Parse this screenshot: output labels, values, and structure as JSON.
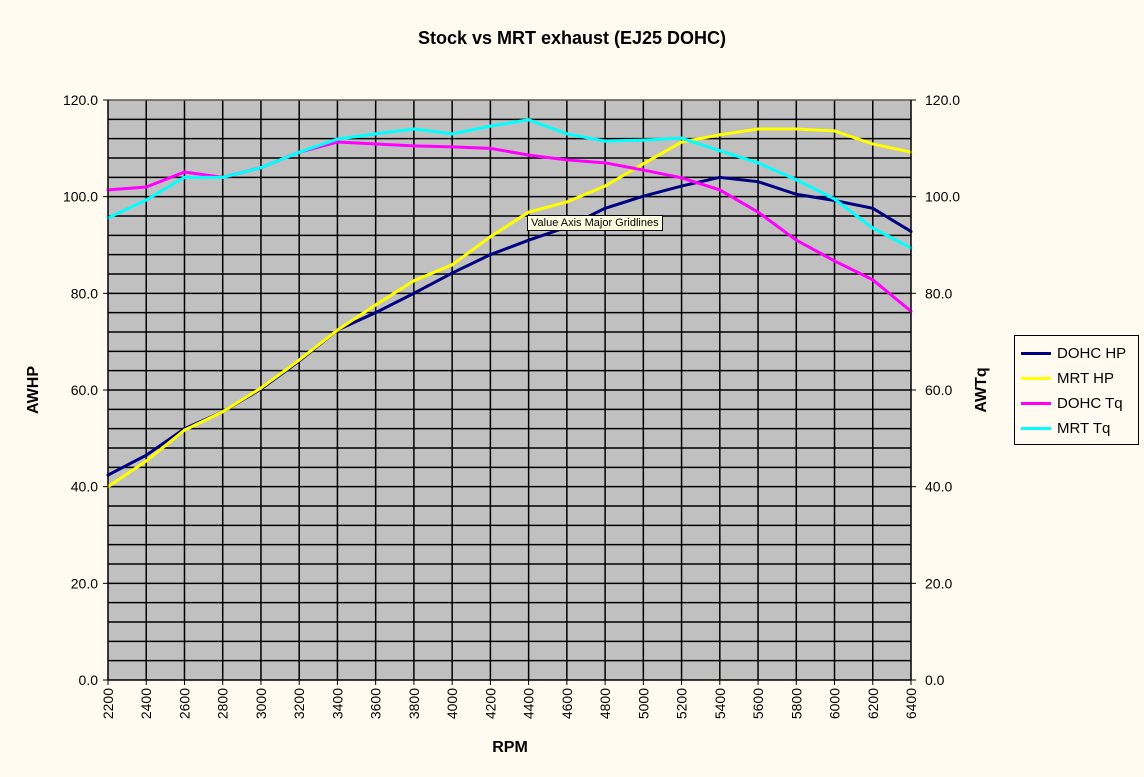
{
  "chart_data": {
    "type": "line",
    "title": "Stock vs MRT exhaust (EJ25 DOHC)",
    "xlabel": "RPM",
    "ylabel": "AWHP",
    "y2label": "AWTq",
    "ylim": [
      0,
      120
    ],
    "y2lim": [
      0,
      120
    ],
    "yticks": [
      "0.0",
      "20.0",
      "40.0",
      "60.0",
      "80.0",
      "100.0",
      "120.0"
    ],
    "grid": true,
    "legend_position": "right",
    "x": [
      2200,
      2400,
      2600,
      2800,
      3000,
      3200,
      3400,
      3600,
      3800,
      4000,
      4200,
      4400,
      4600,
      4800,
      5000,
      5200,
      5400,
      5600,
      5800,
      6000,
      6200,
      6400
    ],
    "series": [
      {
        "name": "DOHC HP",
        "color": "#000080",
        "values": [
          42.4,
          46.5,
          52.0,
          55.5,
          60.2,
          66.0,
          72.4,
          76.0,
          80.0,
          84.2,
          88.0,
          91.0,
          93.7,
          97.6,
          100.1,
          102.2,
          104.0,
          103.1,
          100.5,
          99.2,
          97.6,
          92.8
        ]
      },
      {
        "name": "MRT HP",
        "color": "#ffff00",
        "values": [
          40.0,
          45.3,
          51.7,
          55.5,
          60.4,
          66.2,
          72.4,
          77.6,
          82.6,
          85.9,
          91.7,
          96.8,
          98.9,
          102.2,
          106.8,
          111.3,
          112.8,
          114.0,
          114.0,
          113.6,
          110.9,
          109.2
        ]
      },
      {
        "name": "DOHC Tq",
        "color": "#ff00ff",
        "values": [
          101.4,
          102.0,
          105.1,
          104.0,
          106.0,
          109.2,
          111.3,
          110.9,
          110.5,
          110.3,
          110.0,
          108.6,
          107.6,
          107.0,
          105.5,
          103.9,
          101.4,
          96.8,
          91.0,
          86.7,
          82.8,
          76.3
        ]
      },
      {
        "name": "MRT Tq",
        "color": "#00ffff",
        "values": [
          95.6,
          99.3,
          104.0,
          104.0,
          106.0,
          109.2,
          111.9,
          113.0,
          114.0,
          113.0,
          114.6,
          115.9,
          113.0,
          111.5,
          111.7,
          112.1,
          109.5,
          107.0,
          103.5,
          99.5,
          93.5,
          89.4
        ]
      }
    ]
  },
  "tooltip": "Value Axis Major Gridlines"
}
